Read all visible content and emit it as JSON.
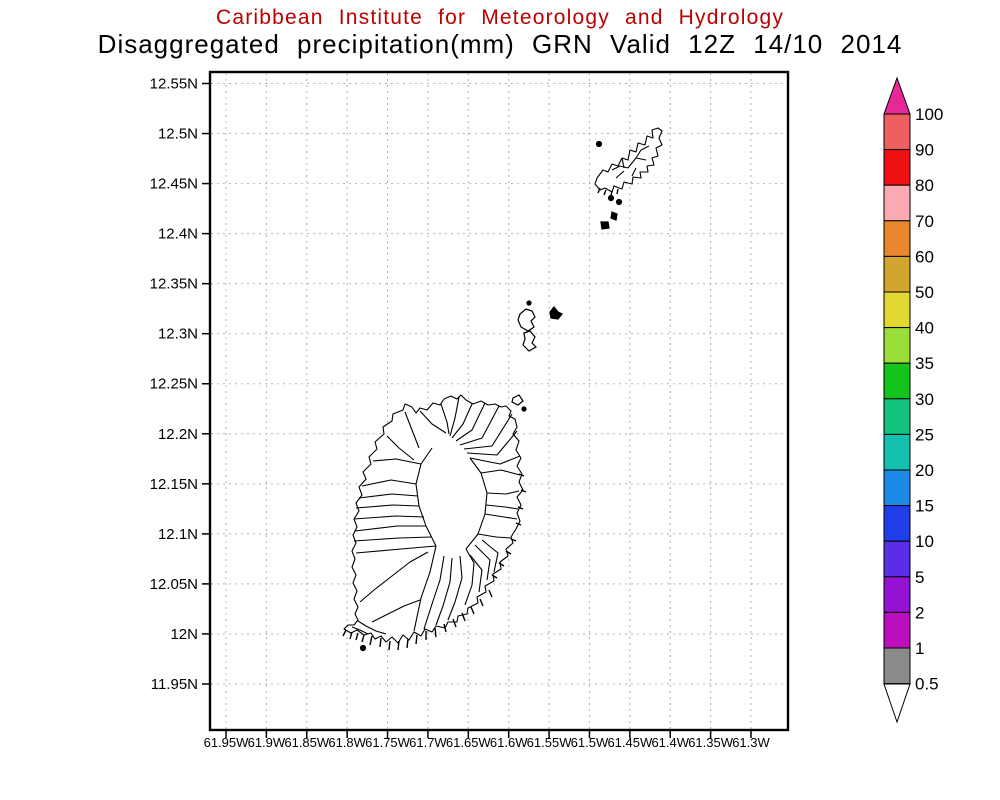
{
  "header": {
    "title_line1": "Caribbean Institute for Meteorology and Hydrology",
    "title_line2": "Disaggregated precipitation(mm) GRN Valid 12Z 14/10 2014",
    "title_line1_color": "#bb0000"
  },
  "map_axes": {
    "lat_labels": [
      "12.55N",
      "12.5N",
      "12.45N",
      "12.4N",
      "12.35N",
      "12.3N",
      "12.25N",
      "12.2N",
      "12.15N",
      "12.1N",
      "12.05N",
      "12N",
      "11.95N"
    ],
    "lon_labels": [
      "61.95W",
      "61.9W",
      "61.85W",
      "61.8W",
      "61.75W",
      "61.7W",
      "61.65W",
      "61.6W",
      "61.55W",
      "61.5W",
      "61.45W",
      "61.4W",
      "61.35W",
      "61.3W"
    ]
  },
  "colorbar": {
    "labels": [
      "100",
      "90",
      "80",
      "70",
      "60",
      "50",
      "40",
      "35",
      "30",
      "25",
      "20",
      "15",
      "10",
      "5",
      "2",
      "1",
      "0.5"
    ],
    "segment_colors": [
      "#ed5f5f",
      "#ee1111",
      "#fbaab4",
      "#e8872e",
      "#d2a62e",
      "#e3d832",
      "#9ade3a",
      "#12c41c",
      "#12c47e",
      "#14bfae",
      "#1e8ae8",
      "#1f3de8",
      "#5a2ee8",
      "#9612d2",
      "#bc0ebc",
      "#8a8a8a"
    ],
    "top_arrow_color": "#e82899",
    "bottom_arrow_color": "#ffffff"
  },
  "chart_data": {
    "type": "map",
    "title": "Disaggregated precipitation(mm) GRN Valid 12Z 14/10 2014",
    "source_text": "Caribbean Institute for Meteorology and Hydrology",
    "valid_time": "12Z 14/10 2014",
    "domain_code": "GRN",
    "lat_tick_range": [
      "11.95N",
      "12.55N"
    ],
    "lat_tick_step_deg": 0.05,
    "lon_tick_range": [
      "61.95W",
      "61.3W"
    ],
    "lon_tick_step_deg": 0.05,
    "grid": "dotted lat/lon graticule",
    "legend_position": "right",
    "colorbar_levels_mm": [
      0.5,
      1,
      2,
      5,
      10,
      15,
      20,
      25,
      30,
      35,
      40,
      50,
      60,
      70,
      80,
      90,
      100
    ],
    "shaded_precipitation_cells_visible": 0,
    "features": "Grenada with watershed boundaries; Carriacou, Petite Martinique and offshore islets outlined"
  }
}
